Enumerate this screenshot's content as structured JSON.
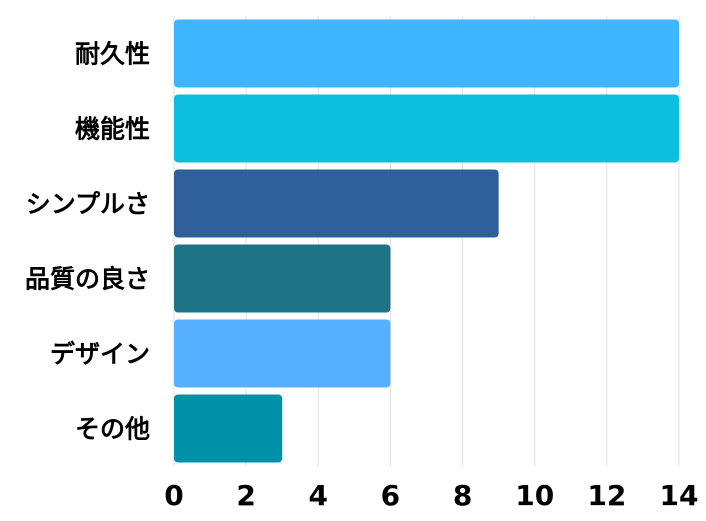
{
  "chart_data": {
    "type": "bar",
    "orientation": "horizontal",
    "categories": [
      "耐久性",
      "機能性",
      "シンプルさ",
      "品質の良さ",
      "デザイン",
      "その他"
    ],
    "values": [
      14,
      14,
      9,
      6,
      6,
      3
    ],
    "colors": [
      "#3db5ff",
      "#0dbfdf",
      "#2e5f98",
      "#1e7384",
      "#55b0ff",
      "#0090a8"
    ],
    "xlim": [
      0,
      14
    ],
    "xticks": [
      "0",
      "2",
      "4",
      "6",
      "8",
      "10",
      "12",
      "14"
    ],
    "grid": "vertical",
    "title": "",
    "xlabel": "",
    "ylabel": ""
  }
}
